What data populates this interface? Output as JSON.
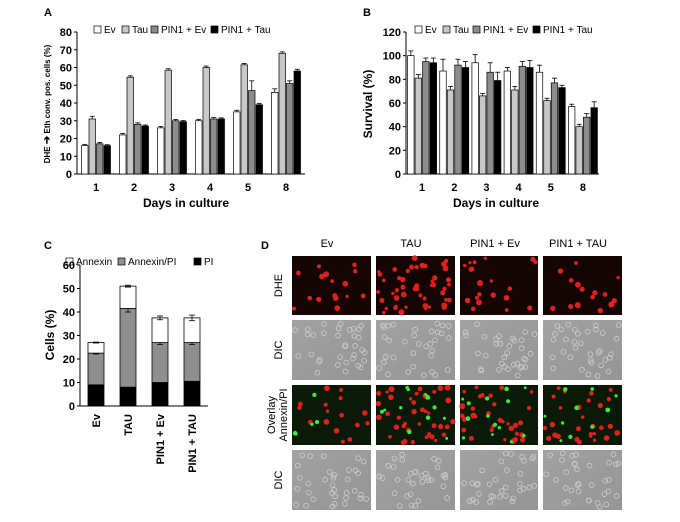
{
  "panels": {
    "a": "A",
    "b": "B",
    "c": "C",
    "d": "D"
  },
  "colors": {
    "Ev": "#ffffff",
    "Tau": "#c8c8c8",
    "PIN1 + Ev": "#8c8c8c",
    "PIN1 + Tau": "#000000",
    "Annexin": "#ffffff",
    "Annexin/PI": "#8f8f8f",
    "PI": "#000000"
  },
  "chart_data": [
    {
      "id": "A",
      "type": "bar",
      "xlabel": "Days in culture",
      "ylabel_parts": [
        "DHE",
        "Eth conv. pos. cells (%)"
      ],
      "ylim": [
        0,
        80
      ],
      "yticks": [
        0,
        10,
        20,
        30,
        40,
        50,
        60,
        70,
        80
      ],
      "categories": [
        "1",
        "2",
        "3",
        "4",
        "5",
        "8"
      ],
      "legend_position": "top",
      "series": [
        {
          "name": "Ev",
          "values": [
            16,
            22,
            26,
            30,
            35,
            46
          ],
          "errors": [
            0.7,
            0.8,
            0.8,
            0.8,
            0.9,
            2.0
          ]
        },
        {
          "name": "Tau",
          "values": [
            31,
            54.5,
            58.5,
            60,
            61.5,
            68
          ],
          "errors": [
            1.5,
            0.8,
            0.8,
            0.8,
            0.8,
            0.8
          ]
        },
        {
          "name": "PIN1 + Ev",
          "values": [
            17,
            28,
            30,
            31,
            47,
            51
          ],
          "errors": [
            0.8,
            0.8,
            0.7,
            0.8,
            5.5,
            1.5
          ]
        },
        {
          "name": "PIN1 + Tau",
          "values": [
            16,
            27,
            29.5,
            31,
            39,
            58
          ],
          "errors": [
            0.5,
            0.6,
            0.6,
            0.6,
            0.8,
            1.0
          ]
        }
      ]
    },
    {
      "id": "B",
      "type": "bar",
      "xlabel": "Days in culture",
      "ylabel": "Survival (%)",
      "ylim": [
        0,
        120
      ],
      "yticks": [
        0,
        20,
        40,
        60,
        80,
        100,
        120
      ],
      "categories": [
        "1",
        "2",
        "3",
        "4",
        "5",
        "8"
      ],
      "legend_position": "top",
      "series": [
        {
          "name": "Ev",
          "values": [
            100,
            87,
            94,
            87,
            86,
            57
          ],
          "errors": [
            4,
            10,
            7,
            3,
            6,
            2
          ]
        },
        {
          "name": "Tau",
          "values": [
            81,
            71,
            66,
            71,
            62,
            40
          ],
          "errors": [
            3,
            3,
            2,
            3,
            2,
            2
          ]
        },
        {
          "name": "PIN1 + Ev",
          "values": [
            95,
            92,
            86,
            91,
            77,
            48
          ],
          "errors": [
            3,
            5,
            8,
            4,
            4,
            3
          ]
        },
        {
          "name": "PIN1 + Tau",
          "values": [
            94,
            90,
            79,
            90,
            73,
            56
          ],
          "errors": [
            4,
            5,
            7,
            6,
            2,
            5
          ]
        }
      ]
    },
    {
      "id": "C",
      "type": "bar",
      "stacked": true,
      "ylabel": "Cells (%)",
      "ylim": [
        0,
        60
      ],
      "yticks": [
        0,
        10,
        20,
        30,
        40,
        50,
        60
      ],
      "categories": [
        "Ev",
        "TAU",
        "PIN1 + Ev",
        "PIN1 + TAU"
      ],
      "legend_position": "top",
      "series": [
        {
          "name": "PI",
          "values": [
            9,
            8,
            10,
            10.5
          ]
        },
        {
          "name": "Annexin/PI",
          "values": [
            13.5,
            33.5,
            17,
            16.5
          ],
          "errors": [
            0.4,
            1.5,
            0.8,
            0.8
          ]
        },
        {
          "name": "Annexin",
          "values": [
            4.5,
            9.5,
            10.5,
            10.5
          ],
          "errors": [
            0.2,
            0.4,
            0.8,
            1.2
          ]
        }
      ]
    }
  ],
  "micrographs": {
    "columns": [
      "Ev",
      "TAU",
      "PIN1 + Ev",
      "PIN1 + TAU"
    ],
    "rows": [
      {
        "label": "DHE",
        "kind": "fluor-red"
      },
      {
        "label": "DIC",
        "kind": "dic"
      },
      {
        "label_lines": [
          "Overlay",
          "Annexin/PI"
        ],
        "kind": "fluor-overlay"
      },
      {
        "label": "DIC",
        "kind": "dic"
      }
    ]
  }
}
